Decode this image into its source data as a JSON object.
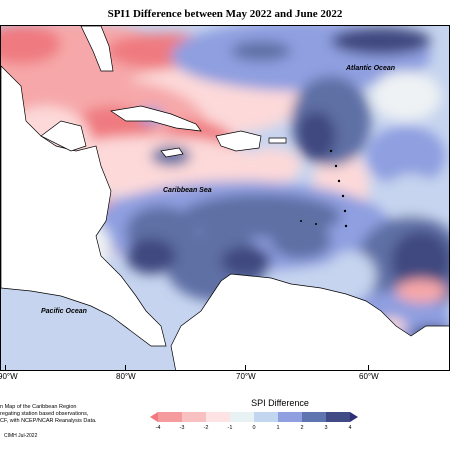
{
  "title": "SPI1 Difference between May 2022 and June 2022",
  "labels": {
    "atlantic": "Atlantic Ocean",
    "caribbean": "Caribbean Sea",
    "pacific": "Pacific Ocean"
  },
  "longitudes": [
    "90°W",
    "80°W",
    "70°W",
    "60°W"
  ],
  "credits": {
    "line1": "n Map of the Caribbean Region",
    "line2": "regating station based observations,",
    "line3": "CF, with NCEP/NCAR Reanalysis Data.",
    "copyright": "CIMH Jul-2022"
  },
  "legend": {
    "title": "SPI Difference",
    "ticks": [
      "-4",
      "-3",
      "-2",
      "-1",
      "0",
      "1",
      "2",
      "3",
      "4"
    ],
    "colors": [
      "#f2787d",
      "#f59a9d",
      "#f8c0c0",
      "#fde3e3",
      "#e9f2f3",
      "#c3d6f0",
      "#8f9fe0",
      "#5f75b0",
      "#404a85",
      "#2f2f78"
    ]
  },
  "colors": {
    "red_strong": "#ef7a80",
    "red_mid": "#f6a7a9",
    "red_light": "#fdd9d9",
    "neutral": "#eef2f4",
    "blue_light": "#c6d4ef",
    "blue_mid": "#8f9fe0",
    "blue_dark": "#5f6fa5",
    "navy": "#3f4a80"
  }
}
